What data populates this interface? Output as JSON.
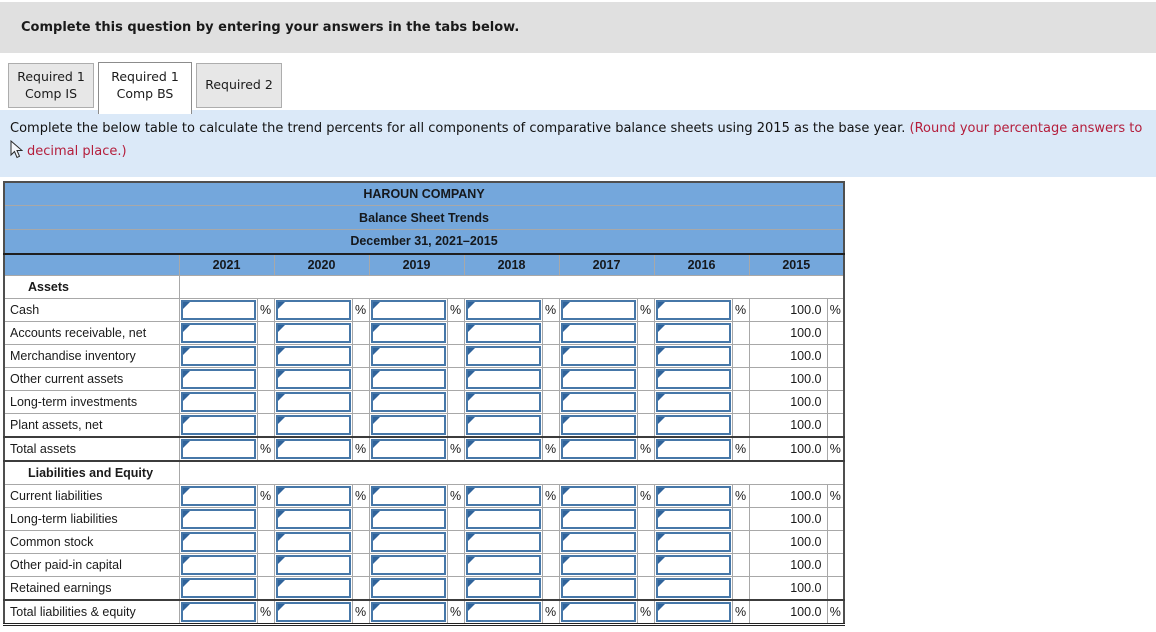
{
  "top_bar": {
    "message": "Complete this question by entering your answers in the tabs below."
  },
  "tabs": [
    {
      "line1": "Required 1",
      "line2": "Comp IS",
      "active": false
    },
    {
      "line1": "Required 1",
      "line2": "Comp BS",
      "active": true
    },
    {
      "line1": "Required 2",
      "line2": "",
      "active": false
    }
  ],
  "instruction": {
    "text_black": "Complete the below table to calculate the trend percents for all components of comparative balance sheets using 2015 as the base year. ",
    "text_red_part1": "(Round your percentage answers to",
    "text_red_part2": "decimal place.)"
  },
  "table": {
    "title": "HAROUN COMPANY",
    "subtitle": "Balance Sheet Trends",
    "period": "December 31, 2021–2015",
    "years": [
      "2021",
      "2020",
      "2019",
      "2018",
      "2017",
      "2016",
      "2015"
    ],
    "input_year_count": 6,
    "base_year_value": "100.0",
    "percent_sign": "%",
    "input_value": "",
    "rows": [
      {
        "type": "section",
        "label": "Assets",
        "percent": false
      },
      {
        "type": "data",
        "label": "Cash",
        "percent": true
      },
      {
        "type": "data",
        "label": "Accounts receivable, net",
        "percent": false
      },
      {
        "type": "data",
        "label": "Merchandise inventory",
        "percent": false
      },
      {
        "type": "data",
        "label": "Other current assets",
        "percent": false
      },
      {
        "type": "data",
        "label": "Long-term investments",
        "percent": false
      },
      {
        "type": "data",
        "label": "Plant assets, net",
        "percent": false
      },
      {
        "type": "total",
        "label": "Total assets",
        "percent": true
      },
      {
        "type": "section",
        "label": "Liabilities and Equity",
        "percent": false
      },
      {
        "type": "data",
        "label": "Current liabilities",
        "percent": true
      },
      {
        "type": "data",
        "label": "Long-term liabilities",
        "percent": false
      },
      {
        "type": "data",
        "label": "Common stock",
        "percent": false
      },
      {
        "type": "data",
        "label": "Other paid-in capital",
        "percent": false
      },
      {
        "type": "data",
        "label": "Retained earnings",
        "percent": false
      },
      {
        "type": "grand_total",
        "label": "Total liabilities & equity",
        "percent": true
      }
    ]
  },
  "colors": {
    "header_blue": "#74a7dc",
    "instruction_bg": "#dbe9f8",
    "red_text": "#b41e3c",
    "input_border": "#4677a8",
    "input_marker": "#2f639b",
    "top_bar_bg": "#e0e0e0",
    "dark_rule": "#1f1f1f"
  }
}
